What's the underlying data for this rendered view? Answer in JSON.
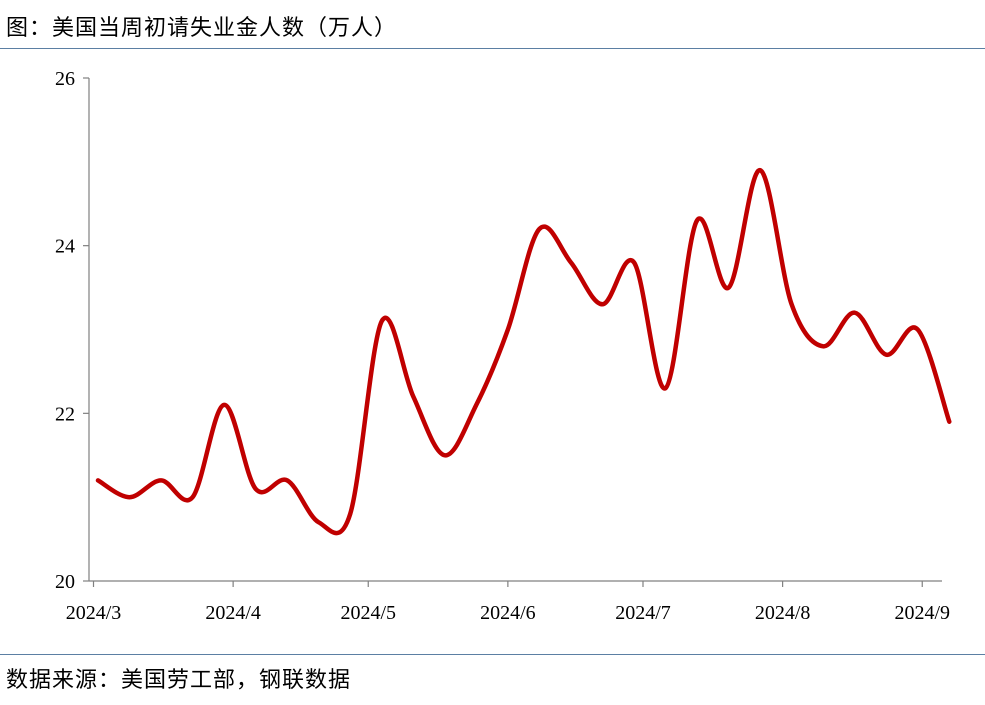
{
  "title": "图：美国当周初请失业金人数（万人）",
  "source": "数据来源：美国劳工部，钢联数据",
  "colors": {
    "line": "#c00000",
    "axis": "#808080",
    "rule": "#5b7fa3"
  },
  "chart_data": {
    "type": "line",
    "title": "图：美国当周初请失业金人数（万人）",
    "xlabel": "",
    "ylabel": "",
    "ylim": [
      20,
      26
    ],
    "yticks": [
      20,
      22,
      24,
      26
    ],
    "xticks": [
      "2024/3",
      "2024/4",
      "2024/5",
      "2024/6",
      "2024/7",
      "2024/8",
      "2024/9"
    ],
    "grid": false,
    "legend": "none",
    "series": [
      {
        "x": [
          "2024-03-02",
          "2024-03-09",
          "2024-03-16",
          "2024-03-23",
          "2024-03-30",
          "2024-04-06",
          "2024-04-13",
          "2024-04-20",
          "2024-04-27",
          "2024-05-04",
          "2024-05-11",
          "2024-05-18",
          "2024-05-25",
          "2024-06-01",
          "2024-06-08",
          "2024-06-15",
          "2024-06-22",
          "2024-06-29",
          "2024-07-06",
          "2024-07-13",
          "2024-07-20",
          "2024-07-27",
          "2024-08-03",
          "2024-08-10",
          "2024-08-17",
          "2024-08-24",
          "2024-08-31",
          "2024-09-07"
        ],
        "values": [
          21.2,
          21.0,
          21.2,
          21.0,
          22.1,
          21.1,
          21.2,
          20.7,
          20.8,
          23.1,
          22.2,
          21.5,
          22.1,
          23.0,
          24.2,
          23.8,
          23.3,
          23.8,
          22.3,
          24.3,
          23.5,
          24.9,
          23.3,
          22.8,
          23.2,
          22.7,
          23.0,
          21.9
        ]
      }
    ]
  }
}
